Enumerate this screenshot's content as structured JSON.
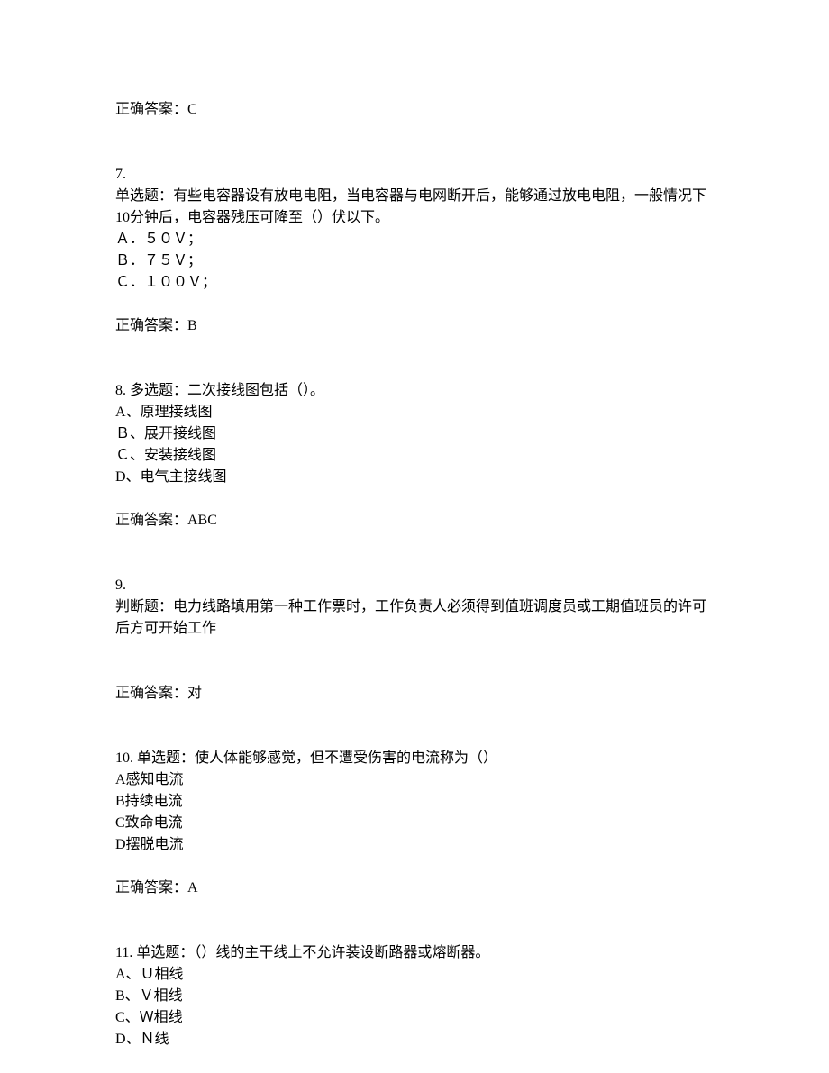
{
  "answer_6": {
    "label": "正确答案：C"
  },
  "question_7": {
    "num": "7.",
    "text": "单选题：有些电容器设有放电电阻，当电容器与电网断开后，能够通过放电电阻，一般情况下10分钟后，电容器残压可降至（）伏以下。",
    "options": {
      "a": "Ａ．５０Ｖ；",
      "b": "Ｂ．７５Ｖ；",
      "c": "Ｃ．１００Ｖ；"
    },
    "answer": "正确答案：B"
  },
  "question_8": {
    "header": "8. 多选题：二次接线图包括（）。",
    "options": {
      "a": "A、原理接线图",
      "b": "Ｂ、展开接线图",
      "c": "Ｃ、安装接线图",
      "d": "D、电气主接线图"
    },
    "answer": "正确答案：ABC"
  },
  "question_9": {
    "num": "9.",
    "text": "判断题：电力线路填用第一种工作票时，工作负责人必须得到值班调度员或工期值班员的许可后方可开始工作",
    "answer": "正确答案：对"
  },
  "question_10": {
    "header": "10. 单选题：使人体能够感觉，但不遭受伤害的电流称为（）",
    "options": {
      "a": "A感知电流",
      "b": "B持续电流",
      "c": "C致命电流",
      "d": "D摆脱电流"
    },
    "answer": "正确答案：A"
  },
  "question_11": {
    "header": "11. 单选题：（）线的主干线上不允许装设断路器或熔断器。",
    "options": {
      "a": "A、Ｕ相线",
      "b": "B、Ｖ相线",
      "c": "C、Ｗ相线",
      "d": "D、Ｎ线"
    }
  }
}
